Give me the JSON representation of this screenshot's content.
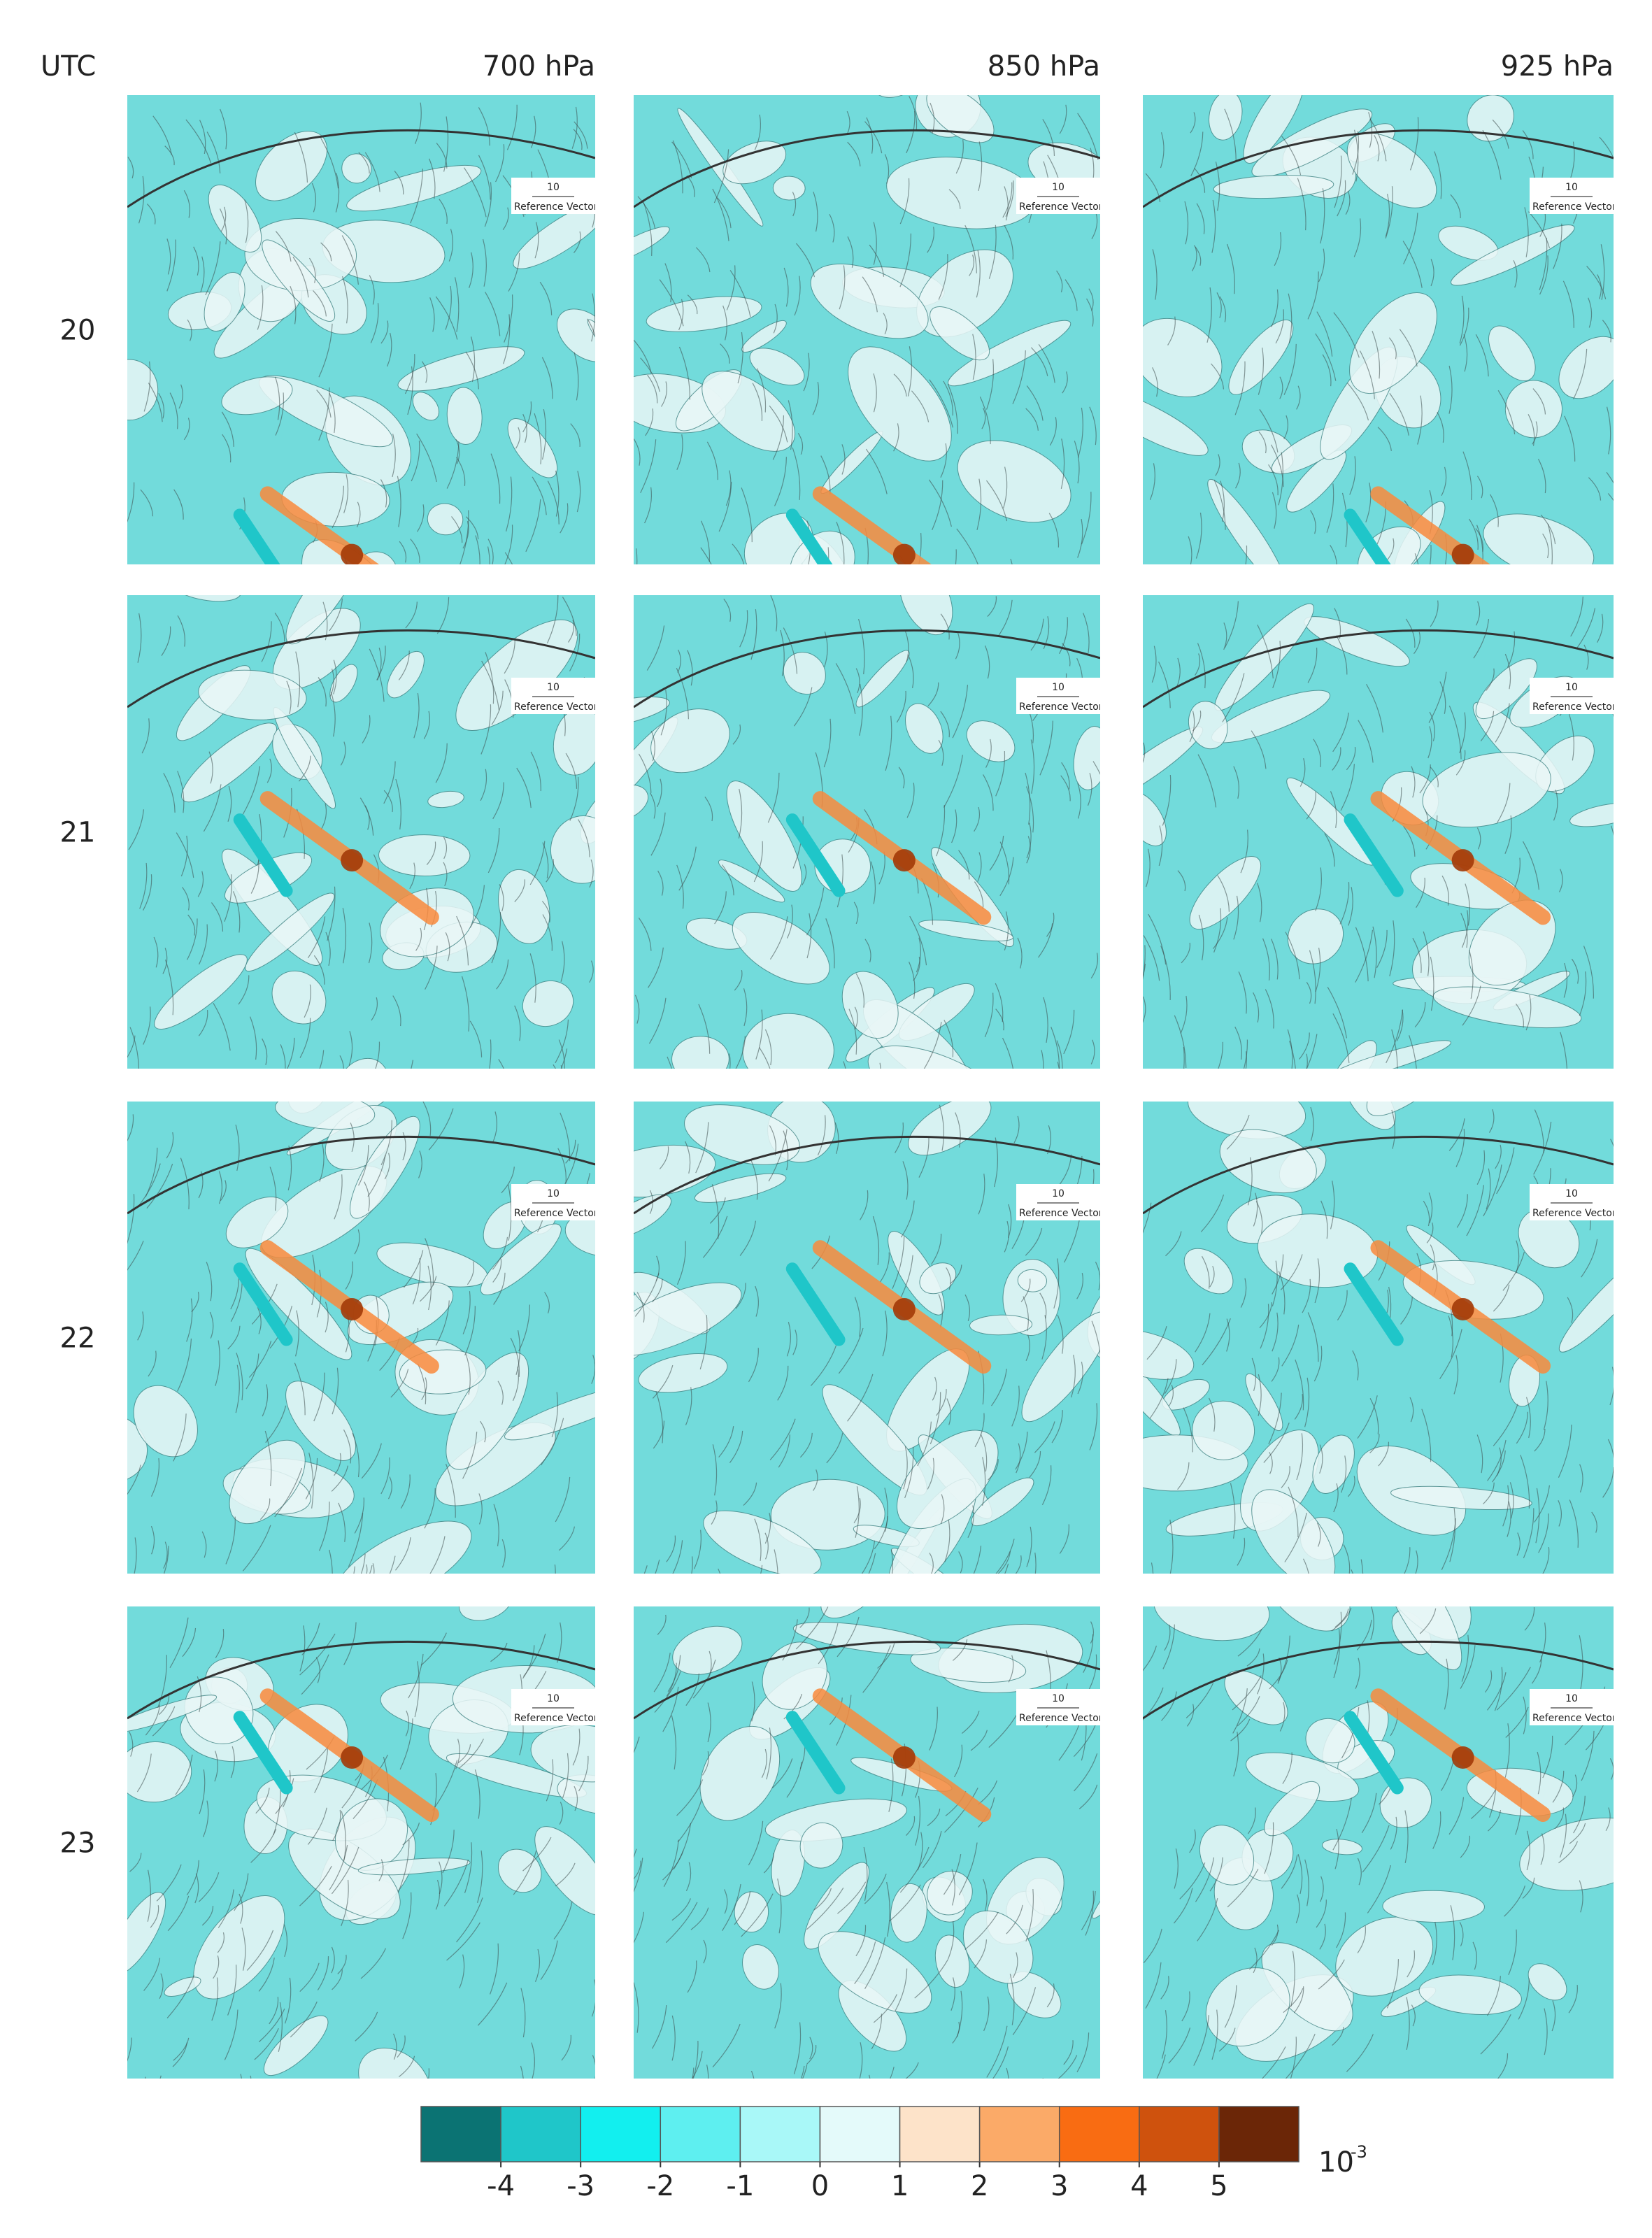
{
  "figure": {
    "utc_label": "UTC",
    "columns": [
      "700 hPa",
      "850 hPa",
      "925 hPa"
    ],
    "rows": [
      "20",
      "21",
      "22",
      "23"
    ],
    "reference_vector": {
      "value": "10",
      "label": "Reference Vector"
    },
    "colorbar": {
      "lim": [
        -5,
        6
      ],
      "ticks": [
        -4,
        -3,
        -2,
        -1,
        0,
        1,
        2,
        3,
        4,
        5
      ],
      "colors": [
        "#0b7373",
        "#1fc6c9",
        "#12efef",
        "#5eeff0",
        "#a9f8f8",
        "#e4fafa",
        "#fde3c9",
        "#fbaa68",
        "#f96c12",
        "#cf520d",
        "#6b2607"
      ],
      "unit_base": "10",
      "unit_exponent": "-3"
    }
  }
}
